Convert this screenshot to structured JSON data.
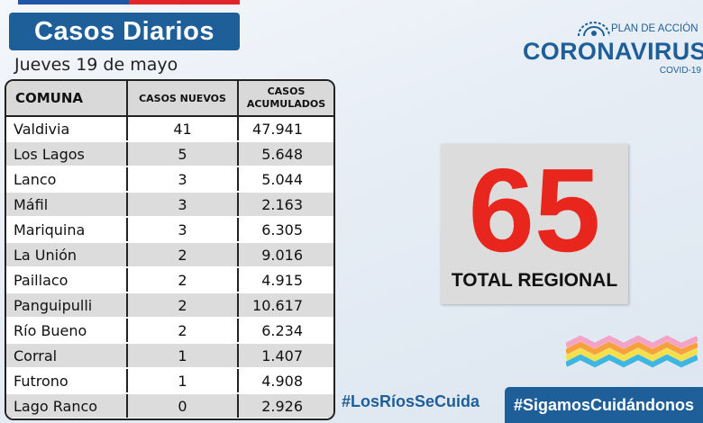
{
  "header": {
    "title": "Casos Diarios",
    "date": "Jueves 19 de mayo"
  },
  "table": {
    "columns": [
      "COMUNA",
      "CASOS NUEVOS",
      "CASOS",
      "ACUMULADOS"
    ],
    "rows": [
      {
        "comuna": "Valdivia",
        "nuevos": "41",
        "acumulados": "47.941"
      },
      {
        "comuna": "Los Lagos",
        "nuevos": "5",
        "acumulados": "5.648"
      },
      {
        "comuna": "Lanco",
        "nuevos": "3",
        "acumulados": "5.044"
      },
      {
        "comuna": "Máfil",
        "nuevos": "3",
        "acumulados": "2.163"
      },
      {
        "comuna": "Mariquina",
        "nuevos": "3",
        "acumulados": "6.305"
      },
      {
        "comuna": "La Unión",
        "nuevos": "2",
        "acumulados": "9.016"
      },
      {
        "comuna": "Paillaco",
        "nuevos": "2",
        "acumulados": "4.915"
      },
      {
        "comuna": "Panguipulli",
        "nuevos": "2",
        "acumulados": "10.617"
      },
      {
        "comuna": "Río Bueno",
        "nuevos": "2",
        "acumulados": "6.234"
      },
      {
        "comuna": "Corral",
        "nuevos": "1",
        "acumulados": "1.407"
      },
      {
        "comuna": "Futrono",
        "nuevos": "1",
        "acumulados": "4.908"
      },
      {
        "comuna": "Lago Ranco",
        "nuevos": "0",
        "acumulados": "2.926"
      }
    ]
  },
  "logo": {
    "plan": "PLAN DE ACCIÓN",
    "name": "CORONAVIRUS",
    "sub": "COVID-19"
  },
  "total": {
    "value": "65",
    "label": "TOTAL REGIONAL"
  },
  "footer": {
    "hashtag_left": "#LosRíosSeCuida",
    "hashtag_right": "#SigamosCuidándonos"
  },
  "colors": {
    "brand_blue": "#1f5f99",
    "accent_red": "#e8261d"
  }
}
